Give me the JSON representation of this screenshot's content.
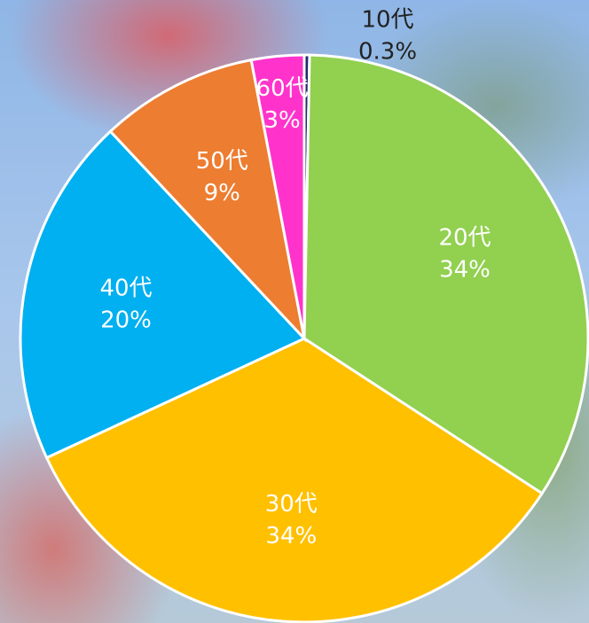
{
  "chart_data": {
    "type": "pie",
    "categories": [
      "10代",
      "20代",
      "30代",
      "40代",
      "50代",
      "60代"
    ],
    "values": [
      0.3,
      34,
      34,
      20,
      9,
      3
    ],
    "value_labels": [
      "0.3%",
      "34%",
      "34%",
      "20%",
      "9%",
      "3%"
    ],
    "colors": [
      "#1f2a6b",
      "#92d050",
      "#ffc000",
      "#00b0f0",
      "#ed7d31",
      "#ff33cc"
    ]
  }
}
